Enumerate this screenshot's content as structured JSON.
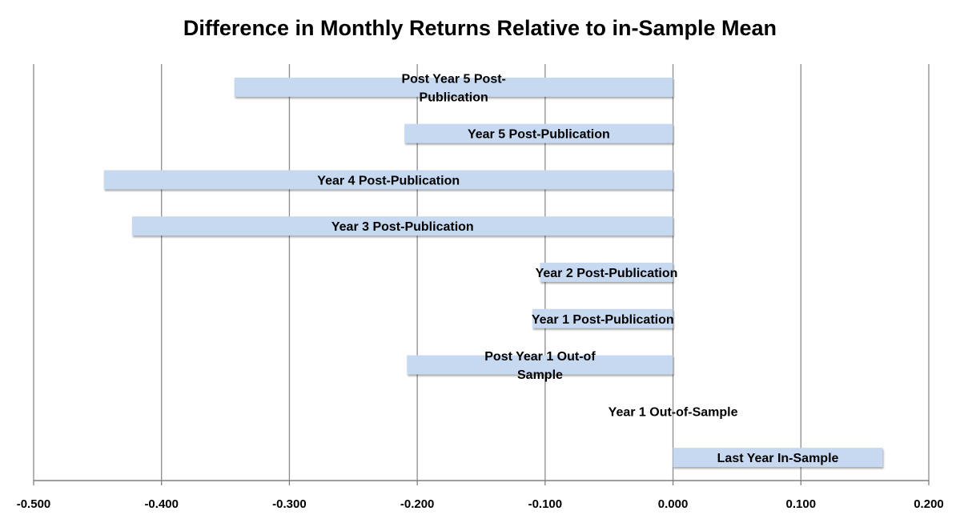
{
  "chart_data": {
    "type": "bar",
    "orientation": "horizontal",
    "title": "Difference in Monthly Returns Relative to in-Sample Mean",
    "xlabel": "",
    "ylabel": "",
    "xlim": [
      -0.5,
      0.2
    ],
    "x_ticks": [
      "-0.500",
      "-0.400",
      "-0.300",
      "-0.200",
      "-0.100",
      "0.000",
      "0.100",
      "0.200"
    ],
    "grid": "vertical",
    "legend": "none",
    "bar_color": "#c6d9f1",
    "categories": [
      "Post Year 5 Post-Publication",
      "Year 5 Post-Publication",
      "Year 4 Post-Publication",
      "Year 3 Post-Publication",
      "Year 2 Post-Publication",
      "Year 1 Post-Publication",
      "Post Year 1 Out-of-Sample",
      "Year 1 Out-of-Sample",
      "Last Year In-Sample"
    ],
    "category_label_lines": [
      [
        "Post Year 5 Post-",
        "Publication"
      ],
      [
        "Year 5 Post-Publication"
      ],
      [
        "Year 4 Post-Publication"
      ],
      [
        "Year 3 Post-Publication"
      ],
      [
        "Year 2 Post-Publication"
      ],
      [
        "Year 1 Post-Publication"
      ],
      [
        "Post Year 1 Out-of",
        "Sample"
      ],
      [
        "Year 1 Out-of-Sample"
      ],
      [
        "Last Year In-Sample"
      ]
    ],
    "values": [
      -0.343,
      -0.21,
      -0.445,
      -0.423,
      -0.104,
      -0.11,
      -0.208,
      0.0,
      0.164
    ]
  }
}
